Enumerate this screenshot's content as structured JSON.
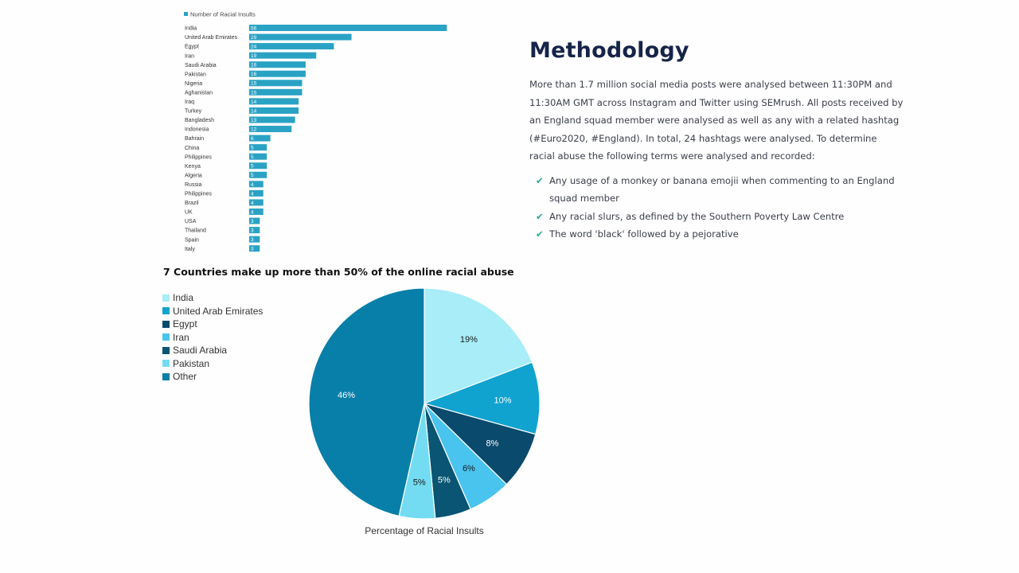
{
  "bar_chart": {
    "legend_label": "Number of Racial Insults",
    "bar_color": "#2aa2c4"
  },
  "pie_chart": {
    "title": "7 Countries make up more than 50% of the online racial abuse",
    "xlabel": "Percentage of Racial Insults"
  },
  "methodology": {
    "heading": "Methodology",
    "paragraph": "More than 1.7 million social media posts were analysed between 11:30PM and 11:30AM GMT across Instagram and Twitter using SEMrush. All posts received by an England squad member were analysed as well as any with a related hashtag (#Euro2020, #England). In total, 24 hashtags were analysed. To determine racial abuse the following terms were analysed and recorded:",
    "bullet_icon": "check-icon",
    "bullets": [
      "Any usage of a monkey or banana emojii when commenting to an England squad member",
      "Any racial slurs, as defined by the Southern Poverty Law Centre",
      "The word 'black' followed by a pejorative"
    ]
  },
  "chart_data": [
    {
      "type": "bar",
      "orientation": "horizontal",
      "legend": [
        "Number of Racial Insults"
      ],
      "legend_placement": "top-left",
      "categories": [
        "India",
        "United Arab Emirates",
        "Egypt",
        "Iran",
        "Saudi Arabia",
        "Pakistan",
        "Nigeria",
        "Aghanistan",
        "Iraq",
        "Turkey",
        "Bangladesh",
        "Indonesia",
        "Bahrain",
        "China",
        "Philippines",
        "Kenya",
        "Algeria",
        "Russia",
        "Philippines",
        "Brazil",
        "UK",
        "USA",
        "Thailand",
        "Spain",
        "Italy"
      ],
      "values": [
        56,
        29,
        24,
        19,
        16,
        16,
        15,
        15,
        14,
        14,
        13,
        12,
        6,
        5,
        5,
        5,
        5,
        4,
        4,
        4,
        4,
        3,
        3,
        3,
        3
      ],
      "xlim": [
        0,
        60
      ],
      "grid": false,
      "color": "#2aa2c4"
    },
    {
      "type": "pie",
      "title": "7 Countries make up more than 50% of the online racial abuse",
      "xlabel": "Percentage of Racial Insults",
      "legend_placement": "left",
      "labels": [
        "India",
        "United Arab Emirates",
        "Egypt",
        "Iran",
        "Saudi Arabia",
        "Pakistan",
        "Other"
      ],
      "values": [
        19,
        10,
        8,
        6,
        5,
        5,
        46
      ],
      "colors": [
        "#a8edf8",
        "#10a3cf",
        "#0a4a6d",
        "#49c4ee",
        "#095573",
        "#74dcf2",
        "#087fa8"
      ]
    }
  ]
}
